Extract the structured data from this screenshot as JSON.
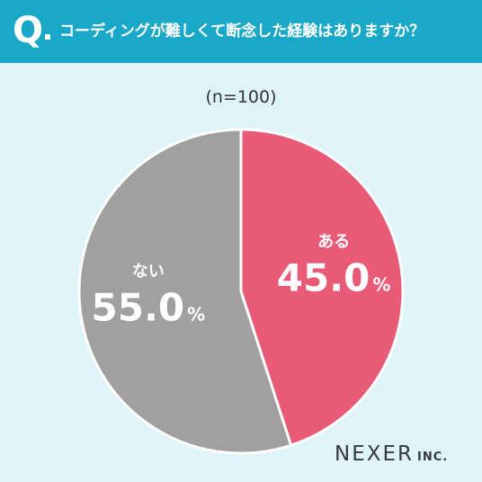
{
  "header": {
    "q_mark": "Q",
    "question": "コーディングが難しくて断念した経験はありますか？"
  },
  "sample_size": "(n=100)",
  "colors": {
    "header_bg": "#1aa8c8",
    "background": "#dff4f9",
    "yes": "#e85a75",
    "no": "#a0a0a0"
  },
  "chart_data": {
    "type": "pie",
    "title": "コーディングが難しくて断念した経験はありますか？",
    "subtitle": "(n=100)",
    "slices": [
      {
        "label": "ある",
        "value": 45.0,
        "display": "45.0",
        "color": "#e85a75"
      },
      {
        "label": "ない",
        "value": 55.0,
        "display": "55.0",
        "color": "#a0a0a0"
      }
    ],
    "unit": "%",
    "start": "12 o'clock",
    "direction": "clockwise"
  },
  "logo": {
    "main": "NEXER",
    "sub": "INC."
  }
}
